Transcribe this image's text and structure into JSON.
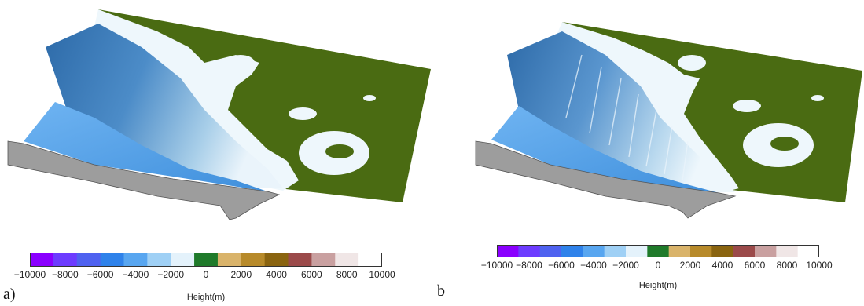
{
  "panels": [
    {
      "id": "a",
      "label": "a)",
      "colorbar": {
        "ticks": [
          "−10000",
          "−8000",
          "−6000",
          "−4000",
          "−2000",
          "0",
          "2000",
          "4000",
          "6000",
          "8000",
          "10000"
        ],
        "title": "Height(m)"
      }
    },
    {
      "id": "b",
      "label": "b",
      "colorbar": {
        "ticks": [
          "−10000",
          "−8000",
          "−6000",
          "−4000",
          "−2000",
          "0",
          "2000",
          "4000",
          "6000",
          "8000",
          "10000"
        ],
        "title": "Height(m)"
      }
    }
  ],
  "colors": {
    "land": "#4a6b12",
    "shallow": "#eaf4fb",
    "slope": "#3f7fbf",
    "deep": "#5aa2e8",
    "side": "#9a9a9a"
  },
  "colormap": [
    "#8a00ff",
    "#6d3cff",
    "#4f62f0",
    "#2f82ea",
    "#58a6f0",
    "#9fd0f5",
    "#e4f2fb",
    "#1f7a2a",
    "#d9b36a",
    "#b78a2a",
    "#8a6410",
    "#9b4a4a",
    "#c9a0a0",
    "#f0e6e6",
    "#ffffff"
  ]
}
